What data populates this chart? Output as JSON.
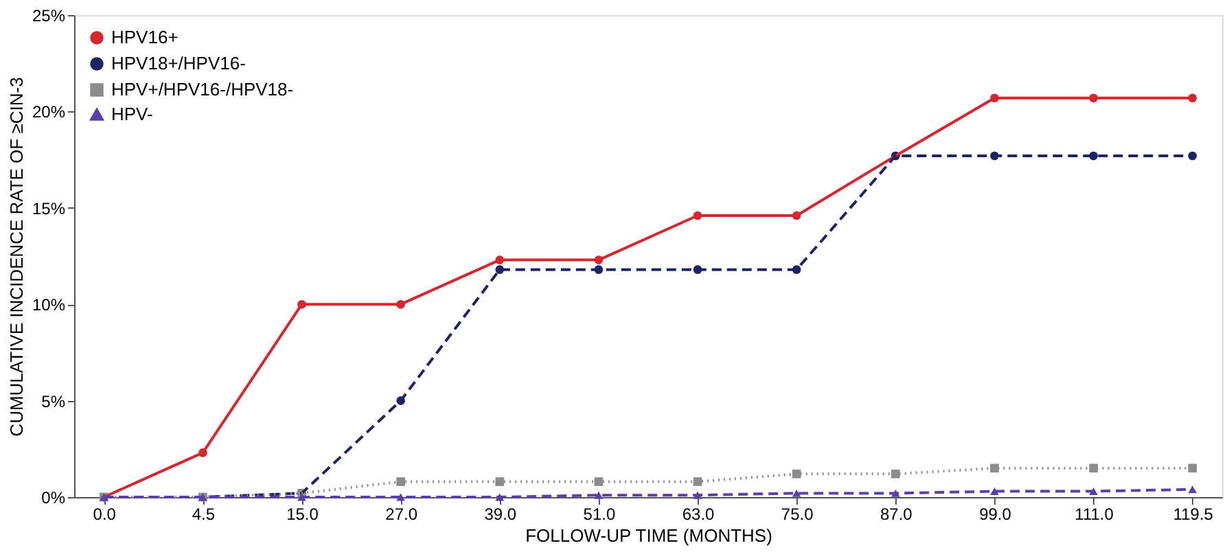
{
  "chart_data": {
    "type": "line",
    "xlabel": "FOLLOW-UP TIME (MONTHS)",
    "ylabel": "CUMULATIVE INCIDENCE RATE OF ≥CIN-3",
    "categories": [
      "0.0",
      "4.5",
      "15.0",
      "27.0",
      "39.0",
      "51.0",
      "63.0",
      "75.0",
      "87.0",
      "99.0",
      "111.0",
      "119.5"
    ],
    "series": [
      {
        "name": "HPV16+",
        "color": "#d7262e",
        "marker": "circle",
        "line_style": "solid",
        "values": [
          0,
          2.3,
          10,
          10,
          12.3,
          12.3,
          14.6,
          14.6,
          17.7,
          20.7,
          20.7,
          20.7
        ]
      },
      {
        "name": "HPV18+/HPV16-",
        "color": "#1c2466",
        "marker": "circle",
        "line_style": "dashed",
        "values": [
          0,
          0,
          0.2,
          5,
          11.8,
          11.8,
          11.8,
          11.8,
          17.7,
          17.7,
          17.7,
          17.7
        ]
      },
      {
        "name": "HPV+/HPV16-/HPV18-",
        "color": "#8c8c8c",
        "marker": "square",
        "line_style": "dotted",
        "values": [
          0,
          0,
          0.2,
          0.8,
          0.8,
          0.8,
          0.8,
          1.2,
          1.2,
          1.5,
          1.5,
          1.5
        ]
      },
      {
        "name": "HPV-",
        "color": "#5b3fa8",
        "marker": "triangle",
        "line_style": "dashed",
        "values": [
          0,
          0,
          0,
          0,
          0,
          0.1,
          0.1,
          0.2,
          0.2,
          0.3,
          0.3,
          0.4
        ]
      }
    ],
    "ylim": [
      0,
      25
    ],
    "yticks": [
      {
        "value": 0,
        "label": "0%"
      },
      {
        "value": 5,
        "label": "5%"
      },
      {
        "value": 10,
        "label": "10%"
      },
      {
        "value": 15,
        "label": "15%"
      },
      {
        "value": 20,
        "label": "20%"
      },
      {
        "value": 25,
        "label": "25%"
      }
    ],
    "grid": false,
    "legend": "top left"
  }
}
